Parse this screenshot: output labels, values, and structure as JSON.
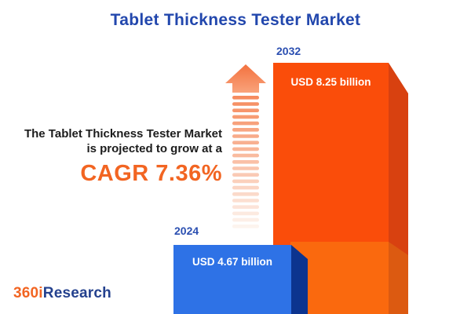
{
  "page": {
    "title": "Tablet Thickness Tester Market"
  },
  "headline": {
    "line1": "The Tablet Thickness Tester Market",
    "line2": "is projected to grow at a",
    "cagr": "CAGR 7.36%",
    "cagr_color": "#f26522"
  },
  "chart_data": {
    "type": "bar",
    "title": "Tablet Thickness Tester Market",
    "categories": [
      "2024",
      "2032"
    ],
    "values": [
      4.67,
      8.25
    ],
    "unit": "USD billion",
    "value_labels": [
      "USD 4.67 billion",
      "USD 8.25 billion"
    ],
    "cagr_percent": 7.36,
    "legend": "none",
    "axes": "none",
    "bar_colors": [
      {
        "front": "#2e72e6",
        "side": "#0c348f"
      },
      {
        "front": "#fa4d0a",
        "side": "#d84110"
      }
    ],
    "echo_bar_colors": {
      "front": "#fa690e",
      "side": "#dc5a11"
    },
    "year_label_color": "#2b4fb1",
    "value_label_color": "#ffffff"
  },
  "arrow": {
    "name": "growth-arrow",
    "head_top_color": "#f3713f",
    "head_bottom_color": "#f9a37b",
    "stripe_top_color": "#f68c5f",
    "stripe_bottom_color": "#fdf4ee",
    "stripe_count": 21
  },
  "logo": {
    "part1": "360i",
    "part2": "Research",
    "part1_color": "#f26522",
    "part2_color": "#24418e"
  }
}
